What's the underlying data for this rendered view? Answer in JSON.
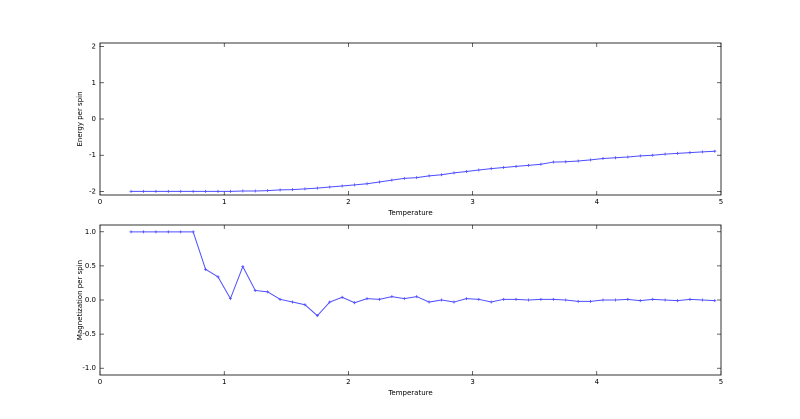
{
  "chart_data": [
    {
      "type": "line",
      "x_label": "Temperature",
      "y_label": "Energy per spin",
      "x": [
        0.25,
        0.35,
        0.45,
        0.55,
        0.65,
        0.75,
        0.85,
        0.95,
        1.05,
        1.15,
        1.25,
        1.35,
        1.45,
        1.55,
        1.65,
        1.75,
        1.85,
        1.95,
        2.05,
        2.15,
        2.25,
        2.35,
        2.45,
        2.55,
        2.65,
        2.75,
        2.85,
        2.95,
        3.05,
        3.15,
        3.25,
        3.35,
        3.45,
        3.55,
        3.65,
        3.75,
        3.85,
        3.95,
        4.05,
        4.15,
        4.25,
        4.35,
        4.45,
        4.55,
        4.65,
        4.75,
        4.85,
        4.95
      ],
      "series": [
        {
          "color": "#4d4dff",
          "values": [
            -2.0,
            -2.0,
            -2.0,
            -2.0,
            -2.0,
            -2.0,
            -2.0,
            -2.0,
            -2.0,
            -1.99,
            -1.99,
            -1.98,
            -1.96,
            -1.95,
            -1.93,
            -1.91,
            -1.88,
            -1.85,
            -1.82,
            -1.79,
            -1.74,
            -1.69,
            -1.64,
            -1.62,
            -1.57,
            -1.54,
            -1.49,
            -1.45,
            -1.41,
            -1.37,
            -1.34,
            -1.31,
            -1.28,
            -1.25,
            -1.19,
            -1.18,
            -1.16,
            -1.13,
            -1.09,
            -1.07,
            -1.05,
            -1.02,
            -1.0,
            -0.97,
            -0.95,
            -0.93,
            -0.91,
            -0.89
          ]
        }
      ],
      "xlim": [
        0,
        5
      ],
      "xticks": [
        0,
        1,
        2,
        3,
        4,
        5
      ],
      "ylim": [
        -2.1,
        2.1
      ],
      "yticks": [
        -2,
        -1,
        0,
        1,
        2
      ]
    },
    {
      "type": "line",
      "x_label": "Temperature",
      "y_label": "Magnetization per spin",
      "x": [
        0.25,
        0.35,
        0.45,
        0.55,
        0.65,
        0.75,
        0.85,
        0.95,
        1.05,
        1.15,
        1.25,
        1.35,
        1.45,
        1.55,
        1.65,
        1.75,
        1.85,
        1.95,
        2.05,
        2.15,
        2.25,
        2.35,
        2.45,
        2.55,
        2.65,
        2.75,
        2.85,
        2.95,
        3.05,
        3.15,
        3.25,
        3.35,
        3.45,
        3.55,
        3.65,
        3.75,
        3.85,
        3.95,
        4.05,
        4.15,
        4.25,
        4.35,
        4.45,
        4.55,
        4.65,
        4.75,
        4.85,
        4.95
      ],
      "series": [
        {
          "color": "#4d4dff",
          "values": [
            1.0,
            1.0,
            1.0,
            1.0,
            1.0,
            1.0,
            0.45,
            0.34,
            0.02,
            0.49,
            0.14,
            0.12,
            0.01,
            -0.03,
            -0.07,
            -0.23,
            -0.03,
            0.04,
            -0.04,
            0.02,
            0.01,
            0.05,
            0.02,
            0.05,
            -0.03,
            0.0,
            -0.03,
            0.02,
            0.01,
            -0.03,
            0.01,
            0.01,
            0.0,
            0.01,
            0.01,
            0.0,
            -0.02,
            -0.02,
            0.0,
            0.0,
            0.01,
            -0.01,
            0.01,
            0.0,
            -0.01,
            0.01,
            0.0,
            -0.01
          ]
        }
      ],
      "xlim": [
        0,
        5
      ],
      "xticks": [
        0,
        1,
        2,
        3,
        4,
        5
      ],
      "ylim": [
        -1.1,
        1.1
      ],
      "yticks": [
        {
          "value": -1,
          "label": "-1.0"
        },
        -0.5,
        {
          "value": 0,
          "label": "0.0"
        },
        0.5,
        {
          "value": 1,
          "label": "1.0"
        }
      ]
    }
  ]
}
